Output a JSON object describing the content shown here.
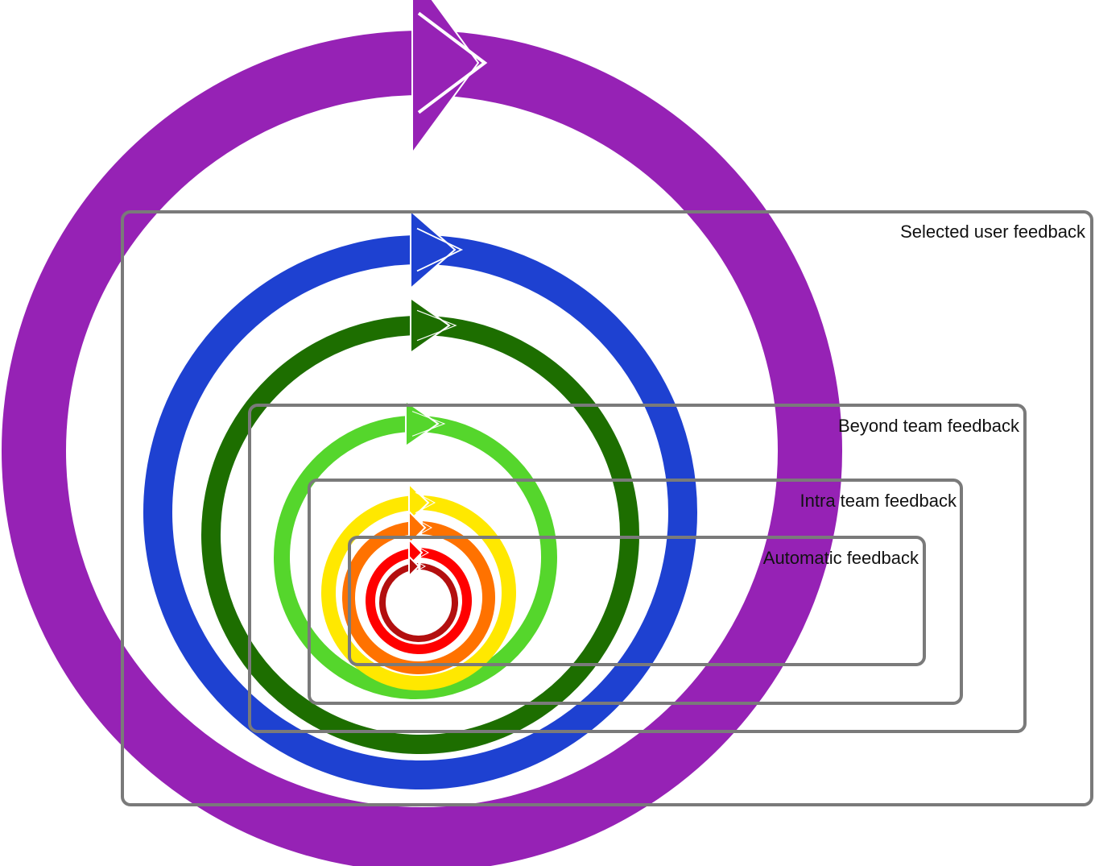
{
  "diagram": {
    "type": "nested-feedback-loops",
    "loops": [
      {
        "id": "selected-user-feedback-loop",
        "color": "#9622b5"
      },
      {
        "id": "blue-loop",
        "color": "#1e41d1"
      },
      {
        "id": "dark-green-loop",
        "color": "#1d6e00"
      },
      {
        "id": "light-green-loop",
        "color": "#55d62c"
      },
      {
        "id": "yellow-loop",
        "color": "#ffe800"
      },
      {
        "id": "orange-loop",
        "color": "#ff7200"
      },
      {
        "id": "red-loop",
        "color": "#ff0000"
      },
      {
        "id": "dark-red-loop",
        "color": "#b30f0f"
      }
    ],
    "boxes": [
      {
        "id": "selected-user-feedback",
        "label": "Selected user feedback"
      },
      {
        "id": "beyond-team-feedback",
        "label": "Beyond team feedback"
      },
      {
        "id": "intra-team-feedback",
        "label": "Intra team feedback"
      },
      {
        "id": "automatic-feedback",
        "label": "Automatic feedback"
      }
    ],
    "box_stroke_color": "#7a7a7a"
  }
}
